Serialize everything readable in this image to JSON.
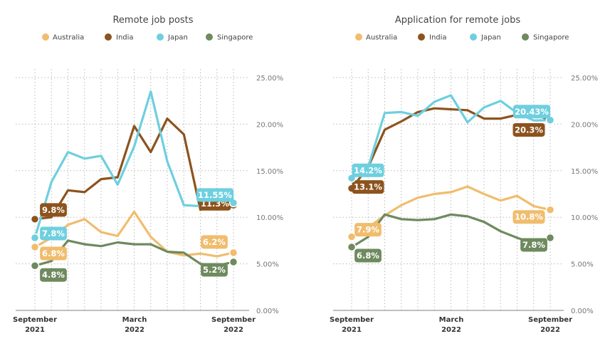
{
  "colors": {
    "Australia": "#F0BD6E",
    "India": "#8C531D",
    "Japan": "#6ECFDF",
    "Singapore": "#6E8A5E",
    "grid": "#b9b9b9",
    "axis": "#9a9a9a"
  },
  "chart_data": [
    {
      "type": "line",
      "title": "Remote job posts",
      "legend_position": "top",
      "y_tick_labels": [
        "25.00%",
        "20.00%",
        "15.00%",
        "10.00%",
        "5.00%",
        "0.00%"
      ],
      "ylim": [
        0,
        25
      ],
      "x_labels": [
        {
          "line1": "September",
          "line2": "2021"
        },
        {
          "line1": "March",
          "line2": "2022"
        },
        {
          "line1": "September",
          "line2": "2022"
        }
      ],
      "x": [
        "2021-09",
        "2021-10",
        "2021-11",
        "2021-12",
        "2022-01",
        "2022-02",
        "2022-03",
        "2022-04",
        "2022-05",
        "2022-06",
        "2022-07",
        "2022-08",
        "2022-09"
      ],
      "series": [
        {
          "name": "Australia",
          "values": [
            6.8,
            7.8,
            9.2,
            9.8,
            8.4,
            8.0,
            10.6,
            7.9,
            6.3,
            5.9,
            6.1,
            5.8,
            6.2
          ],
          "labels": [
            {
              "index": 0,
              "text": "6.8%"
            },
            {
              "index": 12,
              "text": "6.2%"
            }
          ]
        },
        {
          "name": "India",
          "values": [
            9.8,
            10.0,
            12.9,
            12.7,
            14.1,
            14.3,
            19.8,
            17.0,
            20.6,
            18.9,
            10.8,
            11.8,
            11.3
          ],
          "labels": [
            {
              "index": 0,
              "text": "9.8%"
            },
            {
              "index": 12,
              "text": "11.3%"
            }
          ]
        },
        {
          "name": "Japan",
          "values": [
            7.8,
            13.8,
            17.0,
            16.3,
            16.6,
            13.5,
            17.6,
            23.5,
            16.0,
            11.3,
            11.2,
            12.0,
            11.55
          ],
          "labels": [
            {
              "index": 0,
              "text": "7.8%"
            },
            {
              "index": 12,
              "text": "11.55%"
            }
          ]
        },
        {
          "name": "Singapore",
          "values": [
            4.8,
            5.3,
            7.5,
            7.1,
            6.9,
            7.3,
            7.1,
            7.1,
            6.3,
            6.2,
            5.0,
            4.8,
            5.2
          ],
          "labels": [
            {
              "index": 0,
              "text": "4.8%"
            },
            {
              "index": 12,
              "text": "5.2%"
            }
          ]
        }
      ]
    },
    {
      "type": "line",
      "title": "Application for remote jobs",
      "legend_position": "top",
      "y_tick_labels": [
        "25.00%",
        "20.00%",
        "15.00%",
        "10.00%",
        "5.00%",
        "0.00%"
      ],
      "ylim": [
        0,
        25
      ],
      "x_labels": [
        {
          "line1": "September",
          "line2": "2021"
        },
        {
          "line1": "March",
          "line2": "2022"
        },
        {
          "line1": "September",
          "line2": "2022"
        }
      ],
      "x": [
        "2021-09",
        "2021-10",
        "2021-11",
        "2021-12",
        "2022-01",
        "2022-02",
        "2022-03",
        "2022-04",
        "2022-05",
        "2022-06",
        "2022-07",
        "2022-08",
        "2022-09"
      ],
      "series": [
        {
          "name": "Australia",
          "values": [
            7.9,
            8.9,
            10.2,
            11.3,
            12.1,
            12.5,
            12.7,
            13.3,
            12.5,
            11.8,
            12.3,
            11.2,
            10.8
          ],
          "labels": [
            {
              "index": 0,
              "text": "7.9%"
            },
            {
              "index": 12,
              "text": "10.8%"
            }
          ]
        },
        {
          "name": "India",
          "values": [
            13.1,
            15.4,
            19.4,
            20.3,
            21.3,
            21.7,
            21.6,
            21.5,
            20.6,
            20.6,
            21.0,
            21.3,
            20.3
          ],
          "labels": [
            {
              "index": 0,
              "text": "13.1%"
            },
            {
              "index": 12,
              "text": "20.3%"
            }
          ]
        },
        {
          "name": "Japan",
          "values": [
            14.2,
            15.4,
            21.2,
            21.3,
            20.9,
            22.4,
            23.1,
            20.2,
            21.8,
            22.5,
            21.2,
            20.4,
            20.43
          ],
          "labels": [
            {
              "index": 0,
              "text": "14.2%"
            },
            {
              "index": 12,
              "text": "20.43%"
            }
          ]
        },
        {
          "name": "Singapore",
          "values": [
            6.8,
            7.9,
            10.3,
            9.8,
            9.7,
            9.8,
            10.3,
            10.1,
            9.5,
            8.5,
            7.8,
            7.2,
            7.8
          ],
          "labels": [
            {
              "index": 0,
              "text": "6.8%"
            },
            {
              "index": 12,
              "text": "7.8%"
            }
          ]
        }
      ]
    }
  ]
}
